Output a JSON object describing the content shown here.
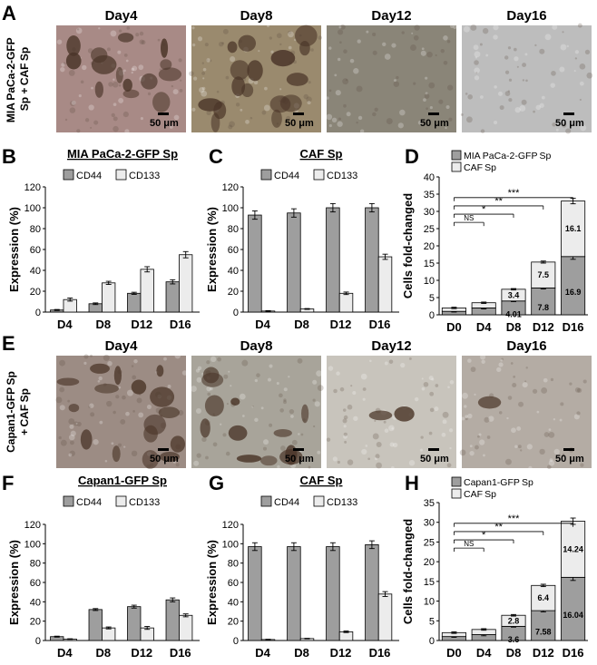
{
  "panels": {
    "A": "A",
    "B": "B",
    "C": "C",
    "D": "D",
    "E": "E",
    "F": "F",
    "G": "G",
    "H": "H"
  },
  "rowA": {
    "ylabel_line1": "MIA PaCa-2-GFP ",
    "ylabel_line2": "Sp + CAF Sp",
    "days": [
      "Day4",
      "Day8",
      "Day12",
      "Day16"
    ],
    "scalebar": "50 μm",
    "tones": [
      "#a88a86",
      "#9a8a6e",
      "#8a8578",
      "#bdbdbd"
    ]
  },
  "rowE": {
    "ylabel_line1": "Capan1-GFP Sp",
    "ylabel_line2": "+ CAF Sp",
    "days": [
      "Day4",
      "Day8",
      "Day12",
      "Day16"
    ],
    "scalebar": "50 μm",
    "tones": [
      "#9c8c84",
      "#a8a49a",
      "#c8c4bc",
      "#b4aca4"
    ]
  },
  "colors": {
    "dark_bar": "#9e9e9e",
    "light_bar": "#ececec",
    "outline": "#000000"
  },
  "chart_data": [
    {
      "id": "B",
      "type": "bar",
      "title": "MIA PaCa-2-GFP  Sp",
      "ylabel": "Expression (%)",
      "categories": [
        "D4",
        "D8",
        "D12",
        "D16"
      ],
      "ylim": [
        0,
        120
      ],
      "yticks": [
        0,
        20,
        40,
        60,
        80,
        100,
        120
      ],
      "series": [
        {
          "name": "CD44",
          "values": [
            2,
            8,
            18,
            29
          ],
          "errors": [
            0.5,
            0.8,
            1.0,
            2.0
          ]
        },
        {
          "name": "CD133",
          "values": [
            12,
            28,
            41,
            55
          ],
          "errors": [
            1.5,
            1.5,
            2.5,
            3.0
          ]
        }
      ]
    },
    {
      "id": "C",
      "type": "bar",
      "title": "CAF Sp",
      "ylabel": "Expression (%)",
      "categories": [
        "D4",
        "D8",
        "D12",
        "D16"
      ],
      "ylim": [
        0,
        120
      ],
      "yticks": [
        0,
        20,
        40,
        60,
        80,
        100,
        120
      ],
      "series": [
        {
          "name": "CD44",
          "values": [
            93,
            95,
            100,
            100
          ],
          "errors": [
            4,
            4,
            4,
            4
          ]
        },
        {
          "name": "CD133",
          "values": [
            1,
            3,
            18,
            53
          ],
          "errors": [
            0.4,
            0.4,
            1.2,
            2.5
          ]
        }
      ]
    },
    {
      "id": "D",
      "type": "bar",
      "stacked": true,
      "ylabel": "Cells fold-changed",
      "categories": [
        "D0",
        "D4",
        "D8",
        "D12",
        "D16"
      ],
      "ylim": [
        0,
        40
      ],
      "yticks": [
        0,
        5,
        10,
        15,
        20,
        25,
        30,
        35,
        40
      ],
      "series": [
        {
          "name": "MIA PaCa-2-GFP Sp",
          "values": [
            1,
            2,
            4.01,
            7.8,
            16.9
          ],
          "errors": [
            0.2,
            0.3,
            0.2,
            0.3,
            0.8
          ]
        },
        {
          "name": "CAF Sp",
          "values": [
            1,
            1.5,
            3.4,
            7.5,
            16.1
          ],
          "errors": [
            0.2,
            0.2,
            0.2,
            0.3,
            0.8
          ]
        }
      ],
      "segment_labels": [
        [
          "",
          "",
          "4.01",
          "7.8",
          "16.9"
        ],
        [
          "",
          "",
          "3.4",
          "7.5",
          "16.1"
        ]
      ],
      "significance": [
        {
          "from": "D0",
          "to": "D4",
          "label": "NS"
        },
        {
          "from": "D0",
          "to": "D8",
          "label": "*"
        },
        {
          "from": "D0",
          "to": "D12",
          "label": "**"
        },
        {
          "from": "D0",
          "to": "D16",
          "label": "***"
        }
      ]
    },
    {
      "id": "F",
      "type": "bar",
      "title": "Capan1-GFP  Sp",
      "ylabel": "Expression (%)",
      "categories": [
        "D4",
        "D8",
        "D12",
        "D16"
      ],
      "ylim": [
        0,
        120
      ],
      "yticks": [
        0,
        20,
        40,
        60,
        80,
        100,
        120
      ],
      "series": [
        {
          "name": "CD44",
          "values": [
            4,
            32,
            35,
            42
          ],
          "errors": [
            0.5,
            1.0,
            1.5,
            2.0
          ]
        },
        {
          "name": "CD133",
          "values": [
            1.5,
            13,
            13,
            26
          ],
          "errors": [
            0.3,
            1.0,
            1.5,
            1.5
          ]
        }
      ]
    },
    {
      "id": "G",
      "type": "bar",
      "title": "CAF Sp",
      "ylabel": "Expression (%)",
      "categories": [
        "D4",
        "D8",
        "D12",
        "D16"
      ],
      "ylim": [
        0,
        120
      ],
      "yticks": [
        0,
        20,
        40,
        60,
        80,
        100,
        120
      ],
      "series": [
        {
          "name": "CD44",
          "values": [
            97,
            97,
            97,
            99
          ],
          "errors": [
            4,
            4,
            4,
            4
          ]
        },
        {
          "name": "CD133",
          "values": [
            1,
            2,
            9,
            48
          ],
          "errors": [
            0.3,
            0.3,
            0.8,
            2.5
          ]
        }
      ]
    },
    {
      "id": "H",
      "type": "bar",
      "stacked": true,
      "ylabel": "Cells fold-changed",
      "categories": [
        "D0",
        "D4",
        "D8",
        "D12",
        "D16"
      ],
      "ylim": [
        0,
        35
      ],
      "yticks": [
        0,
        5,
        10,
        15,
        20,
        25,
        30,
        35
      ],
      "series": [
        {
          "name": "Capan1-GFP Sp",
          "values": [
            1,
            1.5,
            3.6,
            7.58,
            16.04
          ],
          "errors": [
            0.2,
            0.3,
            0.2,
            0.3,
            0.8
          ]
        },
        {
          "name": "CAF Sp",
          "values": [
            1,
            1.3,
            2.8,
            6.4,
            14.24
          ],
          "errors": [
            0.2,
            0.2,
            0.2,
            0.3,
            0.8
          ]
        }
      ],
      "segment_labels": [
        [
          "",
          "",
          "3.6",
          "7.58",
          "16.04"
        ],
        [
          "",
          "",
          "2.8",
          "6.4",
          "14.24"
        ]
      ],
      "significance": [
        {
          "from": "D0",
          "to": "D4",
          "label": "NS"
        },
        {
          "from": "D0",
          "to": "D8",
          "label": "*"
        },
        {
          "from": "D0",
          "to": "D12",
          "label": "**"
        },
        {
          "from": "D0",
          "to": "D16",
          "label": "***"
        }
      ]
    }
  ]
}
